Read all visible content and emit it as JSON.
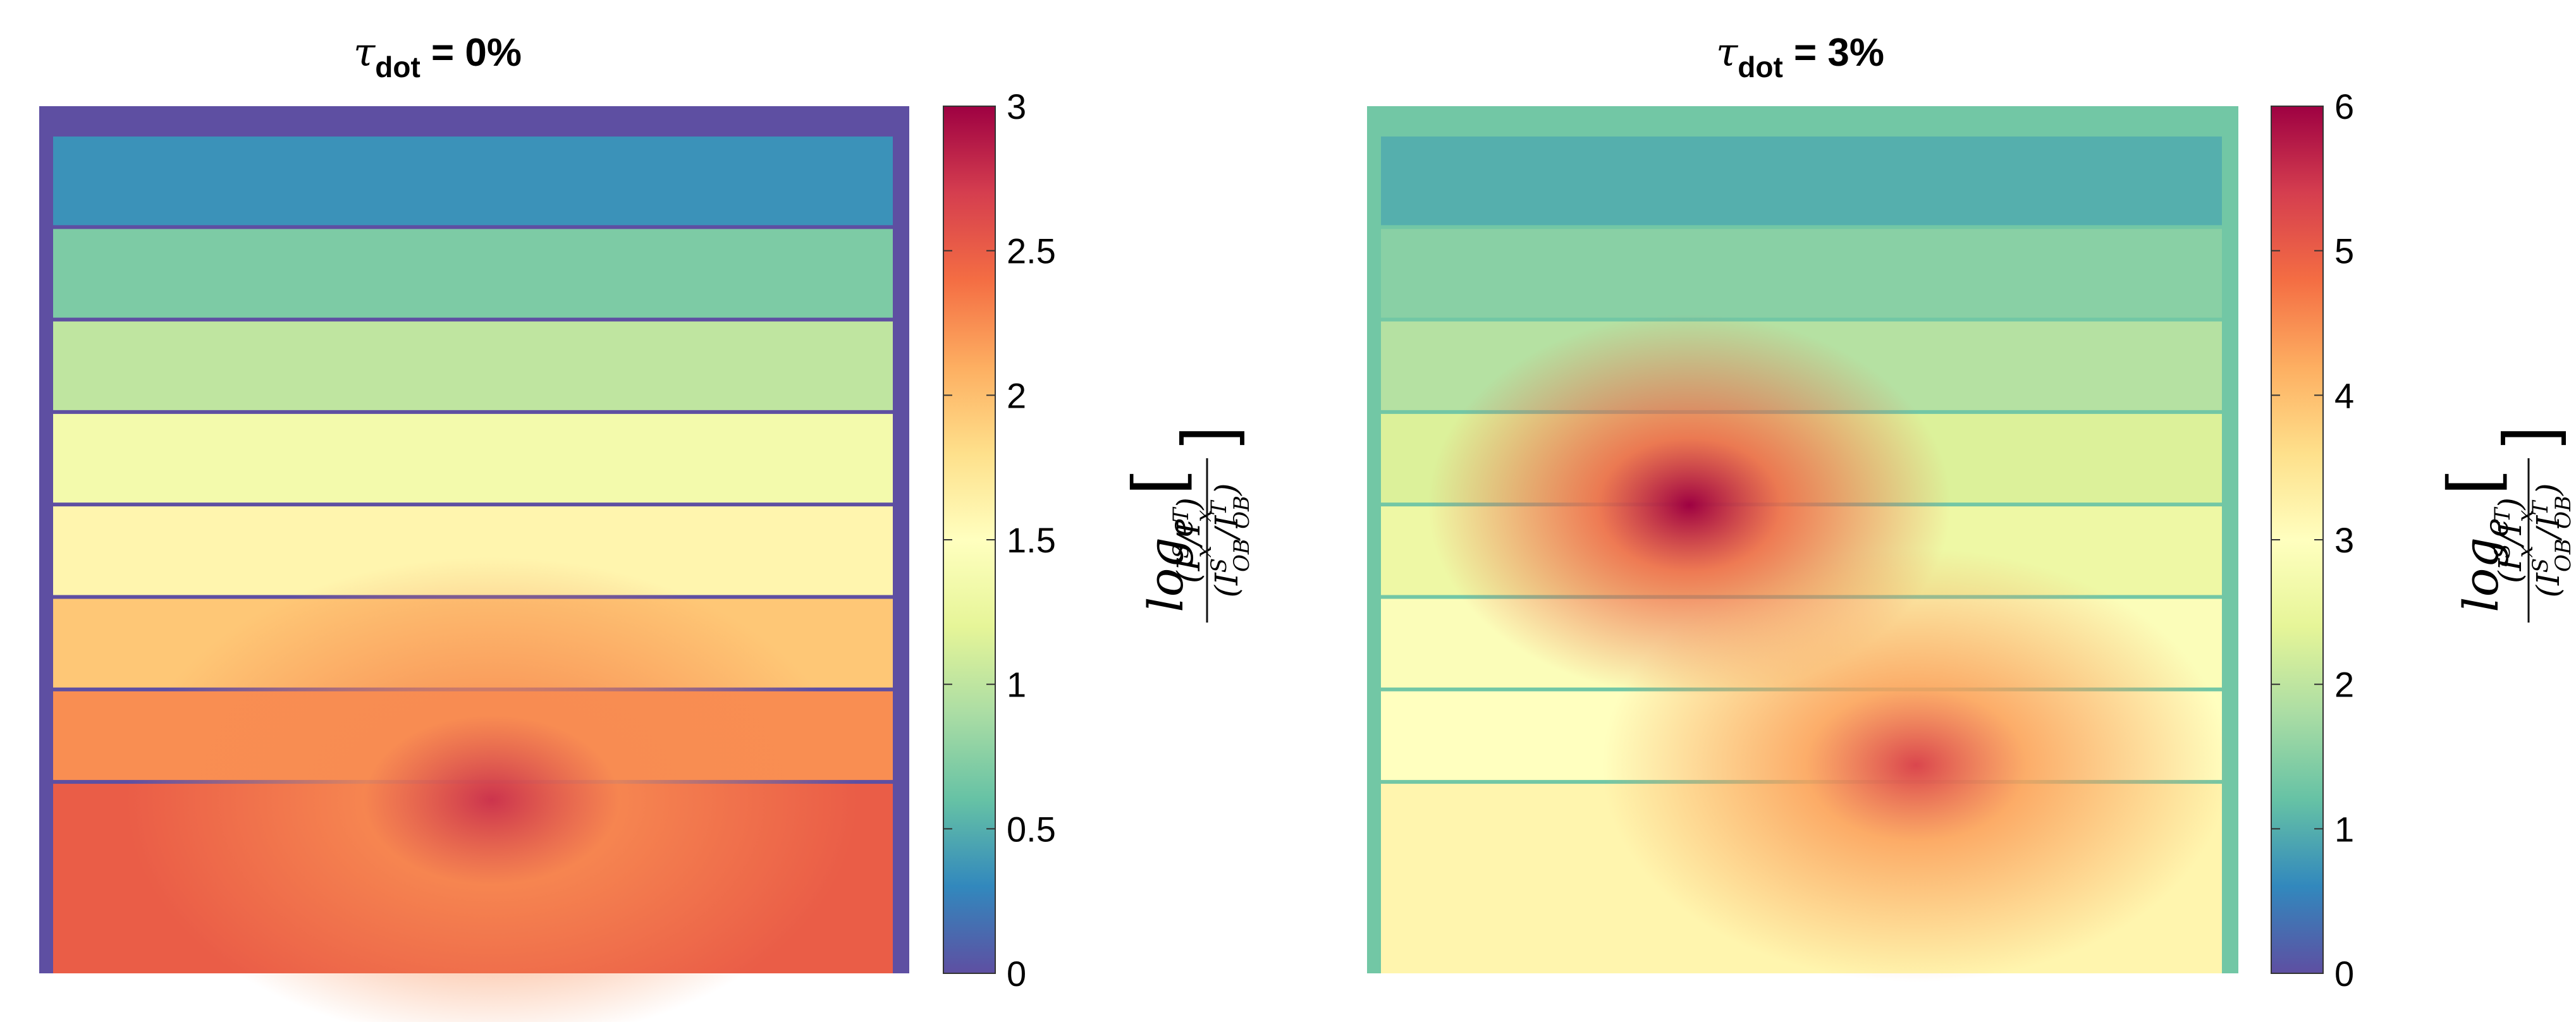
{
  "figure": {
    "colormap": [
      "#5e4fa2",
      "#3288bd",
      "#66c2a5",
      "#abdda4",
      "#e6f598",
      "#ffffbf",
      "#fee08b",
      "#fdae61",
      "#f46d43",
      "#d53e4f",
      "#9e0142"
    ]
  },
  "chart_data": [
    {
      "type": "heatmap",
      "title": "τdot = 0%",
      "title_symbol": "τ",
      "title_subscript": "dot",
      "title_value": " = 0%",
      "description": "Radiograph of an 8-step wedge; each step gets thicker toward the bottom, producing increasing log-ratio values.",
      "colorbar": {
        "range": [
          0,
          3
        ],
        "ticks": [
          0,
          0.5,
          1,
          1.5,
          2,
          2.5,
          3
        ],
        "tick_labels": [
          "0",
          "0.5",
          "1",
          "1.5",
          "2",
          "2.5",
          "3"
        ],
        "label": "log_e [ (I_x^S / I_x^T) / (I_OB^S / I_OB^T) ]",
        "label_prefix": "log",
        "label_sub": "e",
        "label_num": "(I",
        "label_num_sup1": "S",
        "label_num_sub1": "x",
        "label_num_mid": "/I",
        "label_num_sup2": "T",
        "label_num_sub2": "x",
        "label_num_end": ")",
        "label_den": "(I",
        "label_den_sup1": "S",
        "label_den_sub1": "OB",
        "label_den_mid": "/I",
        "label_den_sup2": "T",
        "label_den_sub2": "OB",
        "label_den_end": ")"
      },
      "background_value": 0,
      "step_values": [
        0.35,
        0.7,
        1.0,
        1.35,
        1.6,
        1.95,
        2.25,
        2.5
      ],
      "hotspot": {
        "value": 2.75,
        "location": "lower-right-center"
      }
    },
    {
      "type": "heatmap",
      "title": "τdot = 3%",
      "title_symbol": "τ",
      "title_subscript": "dot",
      "title_value": " = 3%",
      "description": "Same step wedge with a dot-shaped scatterer; strong localized maxima on the 5th–6th steps and lower-right region.",
      "colorbar": {
        "range": [
          0,
          6
        ],
        "ticks": [
          0,
          1,
          2,
          3,
          4,
          5,
          6
        ],
        "tick_labels": [
          "0",
          "1",
          "2",
          "3",
          "4",
          "5",
          "6"
        ],
        "label": "log_e [ (I_x^S / I_x^T) / (I_OB^S / I_OB^T) ]",
        "label_prefix": "log",
        "label_sub": "e",
        "label_num": "(I",
        "label_num_sup1": "S",
        "label_num_sub1": "x",
        "label_num_mid": "/I",
        "label_num_sup2": "T",
        "label_num_sub2": "x",
        "label_num_end": ")",
        "label_den": "(I",
        "label_den_sup1": "S",
        "label_den_sub1": "OB",
        "label_den_mid": "/I",
        "label_den_sup2": "T",
        "label_den_sub2": "OB",
        "label_den_end": ")"
      },
      "background_value": 1.3,
      "step_values": [
        1.0,
        1.5,
        1.9,
        2.3,
        2.6,
        2.9,
        3.0,
        3.2
      ],
      "hotspots": [
        {
          "value": 6.0,
          "location": "upper-middle (step 5)"
        },
        {
          "value": 5.3,
          "location": "lower-right-center"
        }
      ]
    }
  ]
}
